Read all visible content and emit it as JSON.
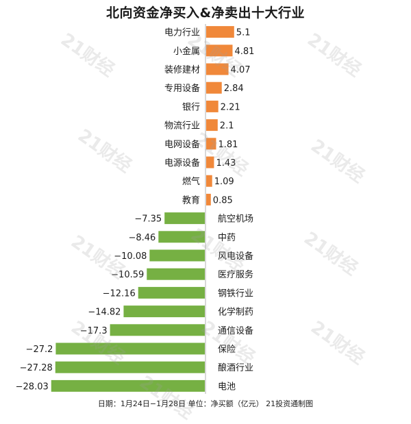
{
  "chart_data": {
    "type": "bar",
    "orientation": "horizontal",
    "title": "北向资金净买入&净卖出十大行业",
    "categories": [
      "电力行业",
      "小金属",
      "装修建材",
      "专用设备",
      "银行",
      "物流行业",
      "电网设备",
      "电源设备",
      "燃气",
      "教育",
      "航空机场",
      "中药",
      "风电设备",
      "医疗服务",
      "钢铁行业",
      "化学制药",
      "通信设备",
      "保险",
      "酿酒行业",
      "电池"
    ],
    "values": [
      5.1,
      4.81,
      4.07,
      2.84,
      2.21,
      2.1,
      1.81,
      1.43,
      1.09,
      0.85,
      -7.35,
      -8.46,
      -10.08,
      -10.59,
      -12.16,
      -14.82,
      -17.3,
      -27.2,
      -27.28,
      -28.03
    ],
    "value_labels": [
      "5.1",
      "4.81",
      "4.07",
      "2.84",
      "2.21",
      "2.1",
      "1.81",
      "1.43",
      "1.09",
      "0.85",
      "−7.35",
      "−8.46",
      "−10.08",
      "−10.59",
      "−12.16",
      "−14.82",
      "−17.3",
      "−27.2",
      "−27.28",
      "−28.03"
    ],
    "colors": {
      "positive": "#f0883a",
      "negative": "#76b043",
      "axis": "#b0b0b0"
    },
    "grid": false,
    "legend": "none"
  },
  "footer": {
    "source_text": "日期：1月24日−1月28日 单位：净买额（亿元） 21投资通制图"
  },
  "watermark": {
    "text": "21财经"
  }
}
